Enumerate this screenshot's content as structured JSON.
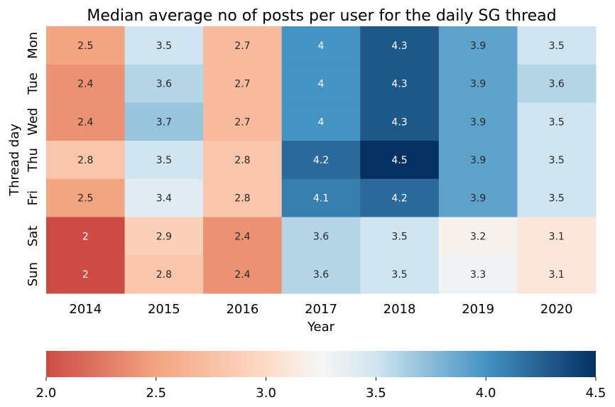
{
  "chart_data": {
    "type": "heatmap",
    "title": "Median average no of posts per user for the daily SG thread",
    "xlabel": "Year",
    "ylabel": "Thread day",
    "x_categories": [
      "2014",
      "2015",
      "2016",
      "2017",
      "2018",
      "2019",
      "2020"
    ],
    "y_categories": [
      "Mon",
      "Tue",
      "Wed",
      "Thu",
      "Fri",
      "Sat",
      "Sun"
    ],
    "values": [
      [
        2.5,
        3.5,
        2.7,
        4.0,
        4.3,
        3.9,
        3.5
      ],
      [
        2.4,
        3.6,
        2.7,
        4.0,
        4.3,
        3.9,
        3.6
      ],
      [
        2.4,
        3.7,
        2.7,
        4.0,
        4.3,
        3.9,
        3.5
      ],
      [
        2.8,
        3.5,
        2.8,
        4.2,
        4.5,
        3.9,
        3.5
      ],
      [
        2.5,
        3.4,
        2.8,
        4.1,
        4.2,
        3.9,
        3.5
      ],
      [
        2.0,
        2.9,
        2.4,
        3.6,
        3.5,
        3.2,
        3.1
      ],
      [
        2.0,
        2.8,
        2.4,
        3.6,
        3.5,
        3.3,
        3.1
      ]
    ],
    "colormap": "RdBu",
    "vmin": 2.0,
    "vmax": 4.5,
    "colorbar": {
      "orientation": "horizontal",
      "placement": "bottom",
      "ticks": [
        "2.0",
        "2.5",
        "3.0",
        "3.5",
        "4.0",
        "4.5"
      ]
    }
  }
}
